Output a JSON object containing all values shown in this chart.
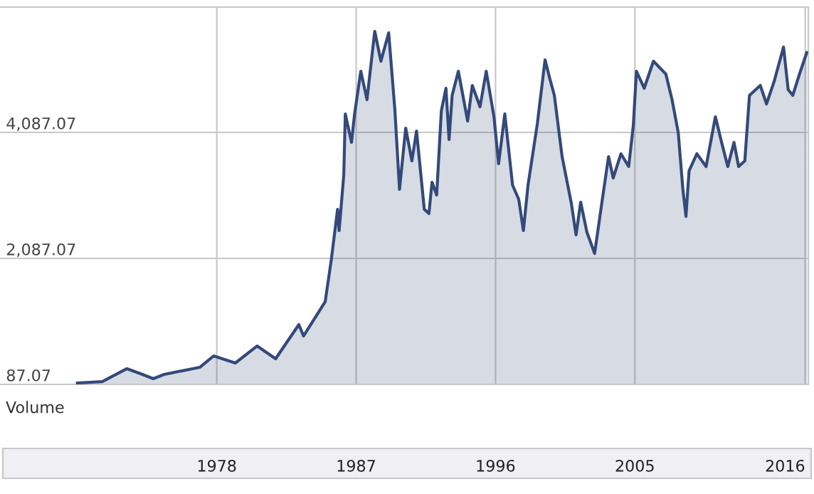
{
  "chart_data": {
    "type": "area",
    "color": "#34497a",
    "grid": true,
    "x": [
      1969.0,
      1970.6,
      1972.2,
      1973.2,
      1973.9,
      1974.6,
      1976.9,
      1977.8,
      1979.2,
      1980.6,
      1981.8,
      1983.3,
      1983.6,
      1985.0,
      1985.4,
      1985.8,
      1985.9,
      1986.2,
      1986.3,
      1986.7,
      1986.9,
      1987.3,
      1987.7,
      1988.2,
      1988.6,
      1989.1,
      1989.5,
      1989.8,
      1990.2,
      1990.6,
      1990.9,
      1991.4,
      1991.7,
      1991.9,
      1992.2,
      1992.5,
      1992.8,
      1993.0,
      1993.2,
      1993.6,
      1994.2,
      1994.5,
      1995.0,
      1995.4,
      1995.9,
      1996.2,
      1996.6,
      1997.1,
      1997.5,
      1997.8,
      1998.1,
      1998.7,
      1999.2,
      1999.5,
      1999.8,
      2000.3,
      2000.9,
      2001.2,
      2001.5,
      2001.9,
      2002.4,
      2002.9,
      2003.3,
      2003.6,
      2004.1,
      2004.6,
      2004.9,
      2005.1,
      2005.6,
      2006.2,
      2007.0,
      2007.4,
      2007.8,
      2008.1,
      2008.3,
      2008.5,
      2009.0,
      2009.6,
      2010.2,
      2010.6,
      2011.0,
      2011.4,
      2011.7,
      2012.1,
      2012.4,
      2013.1,
      2013.5,
      2014.0,
      2014.6,
      2014.9,
      2015.2,
      2015.6,
      2016.1
    ],
    "values": [
      110,
      130,
      336,
      245,
      177,
      245,
      358,
      539,
      426,
      697,
      494,
      1036,
      855,
      1398,
      2076,
      2867,
      2528,
      3409,
      4381,
      3929,
      4381,
      5059,
      4607,
      5692,
      5217,
      5669,
      4449,
      3183,
      4155,
      3635,
      4110,
      2867,
      2799,
      3296,
      3093,
      4426,
      4788,
      3974,
      4675,
      5059,
      4268,
      4833,
      4494,
      5059,
      4336,
      3590,
      4381,
      3251,
      3025,
      2528,
      3251,
      4223,
      5240,
      4946,
      4675,
      3703,
      2957,
      2460,
      2980,
      2505,
      2166,
      3025,
      3703,
      3364,
      3748,
      3545,
      4200,
      5059,
      4788,
      5217,
      5014,
      4607,
      4087,
      3183,
      2754,
      3477,
      3748,
      3545,
      4336,
      3929,
      3545,
      3929,
      3545,
      3635,
      4675,
      4833,
      4539,
      4901,
      5443,
      4765,
      4675,
      4991,
      5353
    ],
    "xlim": [
      1964.0,
      2016.2
    ],
    "ylim": [
      87.07,
      6076
    ],
    "xticks": [
      1978,
      1987,
      1996,
      2005,
      2016
    ],
    "yticks": [
      {
        "value": 87.07,
        "label": "87.07"
      },
      {
        "value": 2087.07,
        "label": "2,087.07"
      },
      {
        "value": 4087.07,
        "label": "4,087.07"
      }
    ],
    "annotations": [
      "Volume"
    ]
  }
}
